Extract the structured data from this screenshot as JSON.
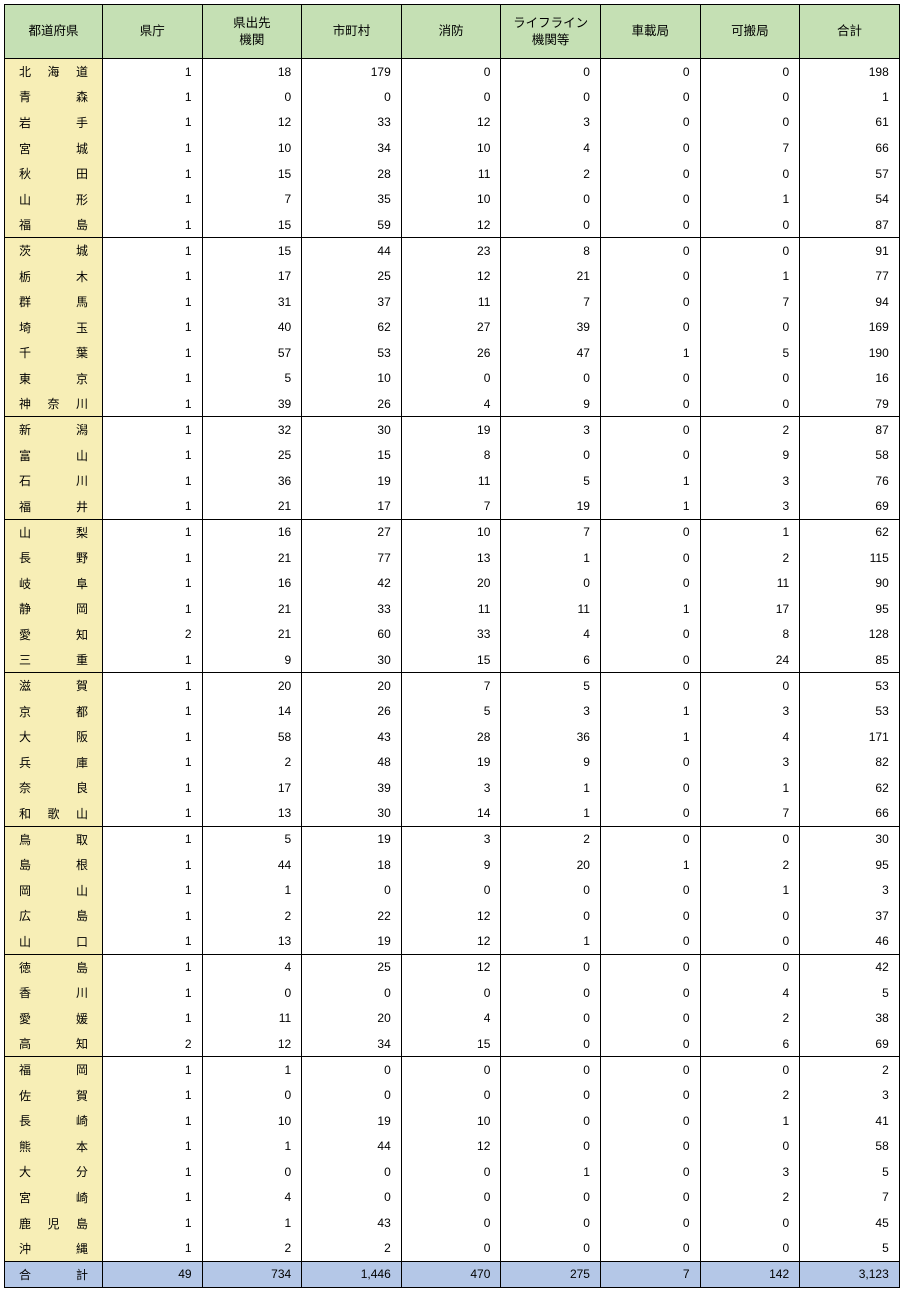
{
  "columns": [
    "都道府県",
    "県庁",
    "県出先\n機関",
    "市町村",
    "消防",
    "ライフライン\n機関等",
    "車載局",
    "可搬局",
    "合計"
  ],
  "groups": [
    {
      "rows": [
        {
          "pref": "北海道",
          "vals": [
            1,
            18,
            179,
            0,
            0,
            0,
            0,
            198
          ]
        },
        {
          "pref": "青森",
          "vals": [
            1,
            0,
            0,
            0,
            0,
            0,
            0,
            1
          ]
        },
        {
          "pref": "岩手",
          "vals": [
            1,
            12,
            33,
            12,
            3,
            0,
            0,
            61
          ]
        },
        {
          "pref": "宮城",
          "vals": [
            1,
            10,
            34,
            10,
            4,
            0,
            7,
            66
          ]
        },
        {
          "pref": "秋田",
          "vals": [
            1,
            15,
            28,
            11,
            2,
            0,
            0,
            57
          ]
        },
        {
          "pref": "山形",
          "vals": [
            1,
            7,
            35,
            10,
            0,
            0,
            1,
            54
          ]
        },
        {
          "pref": "福島",
          "vals": [
            1,
            15,
            59,
            12,
            0,
            0,
            0,
            87
          ]
        }
      ]
    },
    {
      "rows": [
        {
          "pref": "茨城",
          "vals": [
            1,
            15,
            44,
            23,
            8,
            0,
            0,
            91
          ]
        },
        {
          "pref": "栃木",
          "vals": [
            1,
            17,
            25,
            12,
            21,
            0,
            1,
            77
          ]
        },
        {
          "pref": "群馬",
          "vals": [
            1,
            31,
            37,
            11,
            7,
            0,
            7,
            94
          ]
        },
        {
          "pref": "埼玉",
          "vals": [
            1,
            40,
            62,
            27,
            39,
            0,
            0,
            169
          ]
        },
        {
          "pref": "千葉",
          "vals": [
            1,
            57,
            53,
            26,
            47,
            1,
            5,
            190
          ]
        },
        {
          "pref": "東京",
          "vals": [
            1,
            5,
            10,
            0,
            0,
            0,
            0,
            16
          ]
        },
        {
          "pref": "神奈川",
          "vals": [
            1,
            39,
            26,
            4,
            9,
            0,
            0,
            79
          ]
        }
      ]
    },
    {
      "rows": [
        {
          "pref": "新潟",
          "vals": [
            1,
            32,
            30,
            19,
            3,
            0,
            2,
            87
          ]
        },
        {
          "pref": "富山",
          "vals": [
            1,
            25,
            15,
            8,
            0,
            0,
            9,
            58
          ]
        },
        {
          "pref": "石川",
          "vals": [
            1,
            36,
            19,
            11,
            5,
            1,
            3,
            76
          ]
        },
        {
          "pref": "福井",
          "vals": [
            1,
            21,
            17,
            7,
            19,
            1,
            3,
            69
          ]
        }
      ]
    },
    {
      "rows": [
        {
          "pref": "山梨",
          "vals": [
            1,
            16,
            27,
            10,
            7,
            0,
            1,
            62
          ]
        },
        {
          "pref": "長野",
          "vals": [
            1,
            21,
            77,
            13,
            1,
            0,
            2,
            115
          ]
        },
        {
          "pref": "岐阜",
          "vals": [
            1,
            16,
            42,
            20,
            0,
            0,
            11,
            90
          ]
        },
        {
          "pref": "静岡",
          "vals": [
            1,
            21,
            33,
            11,
            11,
            1,
            17,
            95
          ]
        },
        {
          "pref": "愛知",
          "vals": [
            2,
            21,
            60,
            33,
            4,
            0,
            8,
            128
          ]
        },
        {
          "pref": "三重",
          "vals": [
            1,
            9,
            30,
            15,
            6,
            0,
            24,
            85
          ]
        }
      ]
    },
    {
      "rows": [
        {
          "pref": "滋賀",
          "vals": [
            1,
            20,
            20,
            7,
            5,
            0,
            0,
            53
          ]
        },
        {
          "pref": "京都",
          "vals": [
            1,
            14,
            26,
            5,
            3,
            1,
            3,
            53
          ]
        },
        {
          "pref": "大阪",
          "vals": [
            1,
            58,
            43,
            28,
            36,
            1,
            4,
            171
          ]
        },
        {
          "pref": "兵庫",
          "vals": [
            1,
            2,
            48,
            19,
            9,
            0,
            3,
            82
          ]
        },
        {
          "pref": "奈良",
          "vals": [
            1,
            17,
            39,
            3,
            1,
            0,
            1,
            62
          ]
        },
        {
          "pref": "和歌山",
          "vals": [
            1,
            13,
            30,
            14,
            1,
            0,
            7,
            66
          ]
        }
      ]
    },
    {
      "rows": [
        {
          "pref": "鳥取",
          "vals": [
            1,
            5,
            19,
            3,
            2,
            0,
            0,
            30
          ]
        },
        {
          "pref": "島根",
          "vals": [
            1,
            44,
            18,
            9,
            20,
            1,
            2,
            95
          ]
        },
        {
          "pref": "岡山",
          "vals": [
            1,
            1,
            0,
            0,
            0,
            0,
            1,
            3
          ]
        },
        {
          "pref": "広島",
          "vals": [
            1,
            2,
            22,
            12,
            0,
            0,
            0,
            37
          ]
        },
        {
          "pref": "山口",
          "vals": [
            1,
            13,
            19,
            12,
            1,
            0,
            0,
            46
          ]
        }
      ]
    },
    {
      "rows": [
        {
          "pref": "徳島",
          "vals": [
            1,
            4,
            25,
            12,
            0,
            0,
            0,
            42
          ]
        },
        {
          "pref": "香川",
          "vals": [
            1,
            0,
            0,
            0,
            0,
            0,
            4,
            5
          ]
        },
        {
          "pref": "愛媛",
          "vals": [
            1,
            11,
            20,
            4,
            0,
            0,
            2,
            38
          ]
        },
        {
          "pref": "高知",
          "vals": [
            2,
            12,
            34,
            15,
            0,
            0,
            6,
            69
          ]
        }
      ]
    },
    {
      "rows": [
        {
          "pref": "福岡",
          "vals": [
            1,
            1,
            0,
            0,
            0,
            0,
            0,
            2
          ]
        },
        {
          "pref": "佐賀",
          "vals": [
            1,
            0,
            0,
            0,
            0,
            0,
            2,
            3
          ]
        },
        {
          "pref": "長崎",
          "vals": [
            1,
            10,
            19,
            10,
            0,
            0,
            1,
            41
          ]
        },
        {
          "pref": "熊本",
          "vals": [
            1,
            1,
            44,
            12,
            0,
            0,
            0,
            58
          ]
        },
        {
          "pref": "大分",
          "vals": [
            1,
            0,
            0,
            0,
            1,
            0,
            3,
            5
          ]
        },
        {
          "pref": "宮崎",
          "vals": [
            1,
            4,
            0,
            0,
            0,
            0,
            2,
            7
          ]
        },
        {
          "pref": "鹿児島",
          "vals": [
            1,
            1,
            43,
            0,
            0,
            0,
            0,
            45
          ]
        },
        {
          "pref": "沖縄",
          "vals": [
            1,
            2,
            2,
            0,
            0,
            0,
            0,
            5
          ]
        }
      ]
    }
  ],
  "total": {
    "label": "合計",
    "vals": [
      49,
      734,
      1446,
      470,
      275,
      7,
      142,
      3123
    ]
  },
  "colors": {
    "header_bg": "#c5e0b4",
    "pref_bg": "#f7eeb6",
    "total_bg": "#b4c7e7",
    "border": "#000000"
  }
}
